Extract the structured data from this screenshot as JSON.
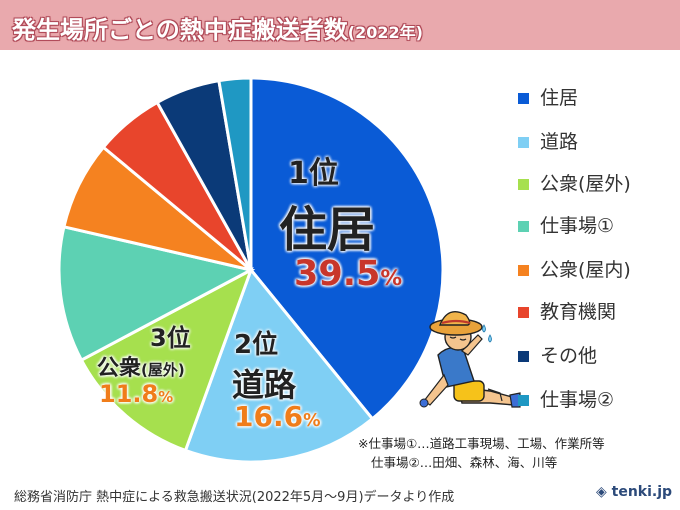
{
  "title": {
    "main": "発生場所ごとの熱中症搬送者数",
    "year": "(2022年)"
  },
  "chart_data": {
    "type": "pie",
    "title": "発生場所ごとの熱中症搬送者数(2022年)",
    "slices": [
      {
        "label": "住居",
        "value": 39.5,
        "color": "#0a5bd6"
      },
      {
        "label": "道路",
        "value": 16.6,
        "color": "#7fcff4"
      },
      {
        "label": "公衆(屋外)",
        "value": 11.8,
        "color": "#a6e04e"
      },
      {
        "label": "仕事場①",
        "value": 11.5,
        "color": "#5dd1b3"
      },
      {
        "label": "公衆(屋内)",
        "value": 7.5,
        "color": "#f58220"
      },
      {
        "label": "教育機関",
        "value": 5.9,
        "color": "#e8452c"
      },
      {
        "label": "その他",
        "value": 5.5,
        "color": "#0b3a78"
      },
      {
        "label": "仕事場②",
        "value": 2.7,
        "color": "#1f98c3"
      }
    ],
    "legend_position": "right",
    "start": "top, clockwise"
  },
  "callouts": {
    "first": {
      "rank": "1位",
      "name": "住居",
      "pct": "39.5",
      "unit": "%",
      "color": "#c8362b"
    },
    "second": {
      "rank": "2位",
      "name": "道路",
      "pct": "16.6",
      "unit": "%",
      "color": "#f07d1a"
    },
    "third": {
      "rank": "3位",
      "name": "公衆",
      "name_sub": "(屋外)",
      "pct": "11.8",
      "unit": "%",
      "color": "#f07d1a"
    }
  },
  "legend": [
    {
      "label": "住居",
      "color": "#0a5bd6"
    },
    {
      "label": "道路",
      "color": "#7fcff4"
    },
    {
      "label": "公衆(屋外)",
      "color": "#a6e04e"
    },
    {
      "label": "仕事場①",
      "color": "#5dd1b3"
    },
    {
      "label": "公衆(屋内)",
      "color": "#f58220"
    },
    {
      "label": "教育機関",
      "color": "#e8452c"
    },
    {
      "label": "その他",
      "color": "#0b3a78"
    },
    {
      "label": "仕事場②",
      "color": "#1f98c3"
    }
  ],
  "notes": [
    "※仕事場①…道路工事現場、工場、作業所等",
    "仕事場②…田畑、森林、海、川等"
  ],
  "source": "総務省消防庁 熱中症による救急搬送状況(2022年5月～9月)データより作成",
  "brand": "tenki.jp"
}
